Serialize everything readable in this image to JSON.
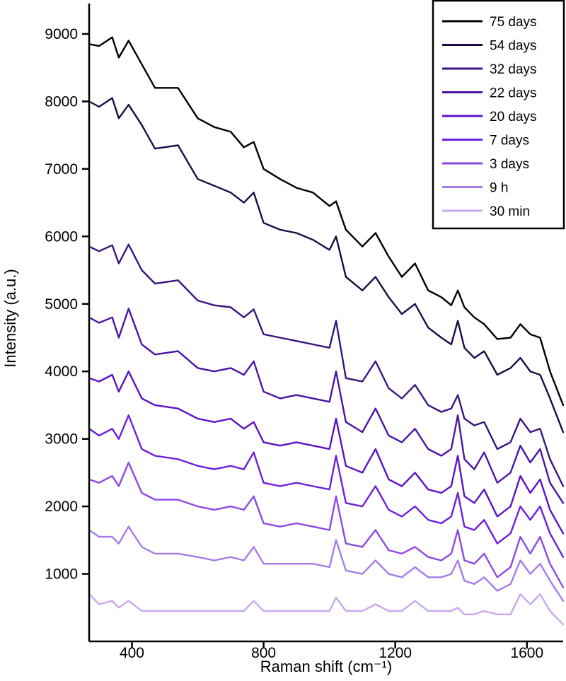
{
  "chart_data": {
    "type": "line",
    "title": "",
    "xlabel": "Raman shift (cm⁻¹)",
    "ylabel": "Intensity (a.u.)",
    "xlim": [
      270,
      1710
    ],
    "ylim": [
      0,
      9450
    ],
    "x_ticks": [
      400,
      800,
      1200,
      1600
    ],
    "x_tick_labels": [
      "400",
      "800",
      "1200",
      "1600"
    ],
    "y_ticks": [
      1000,
      2000,
      3000,
      4000,
      5000,
      6000,
      7000,
      8000,
      9000
    ],
    "y_tick_labels": [
      "1000",
      "2000",
      "3000",
      "4000",
      "5000",
      "6000",
      "7000",
      "8000",
      "9000"
    ],
    "legend_position": "top-right",
    "x": [
      270,
      300,
      340,
      360,
      390,
      430,
      470,
      540,
      600,
      650,
      700,
      740,
      770,
      800,
      850,
      900,
      950,
      1000,
      1020,
      1050,
      1100,
      1140,
      1180,
      1220,
      1260,
      1300,
      1340,
      1370,
      1390,
      1410,
      1440,
      1470,
      1510,
      1550,
      1580,
      1610,
      1640,
      1670,
      1710
    ],
    "series": [
      {
        "name": "75 days",
        "color": "#000000",
        "values": [
          8850,
          8820,
          8950,
          8650,
          8900,
          8550,
          8200,
          8200,
          7750,
          7620,
          7550,
          7320,
          7400,
          7000,
          6850,
          6720,
          6650,
          6450,
          6520,
          6100,
          5850,
          6050,
          5700,
          5400,
          5600,
          5200,
          5100,
          4980,
          5200,
          4950,
          4800,
          4700,
          4480,
          4500,
          4700,
          4550,
          4500,
          4000,
          3500
        ]
      },
      {
        "name": "54 days",
        "color": "#1f0a44",
        "values": [
          8000,
          7920,
          8050,
          7750,
          7950,
          7650,
          7300,
          7350,
          6850,
          6750,
          6650,
          6500,
          6650,
          6200,
          6100,
          6050,
          5950,
          5800,
          6000,
          5400,
          5200,
          5400,
          5100,
          4850,
          5000,
          4650,
          4500,
          4400,
          4750,
          4350,
          4200,
          4300,
          3950,
          4050,
          4200,
          4000,
          3950,
          3600,
          3100
        ]
      },
      {
        "name": "32 days",
        "color": "#3b1480",
        "values": [
          5850,
          5780,
          5870,
          5600,
          5880,
          5500,
          5300,
          5350,
          5050,
          4980,
          4950,
          4800,
          4920,
          4550,
          4500,
          4450,
          4400,
          4350,
          4750,
          3900,
          3850,
          4150,
          3750,
          3600,
          3800,
          3500,
          3400,
          3450,
          3650,
          3300,
          3200,
          3250,
          2850,
          2950,
          3300,
          3100,
          3150,
          2700,
          2300
        ]
      },
      {
        "name": "22 days",
        "color": "#4a14a6",
        "values": [
          4800,
          4720,
          4800,
          4500,
          4930,
          4400,
          4250,
          4300,
          4050,
          4000,
          4050,
          3950,
          4150,
          3700,
          3600,
          3650,
          3600,
          3550,
          4000,
          3250,
          3100,
          3450,
          3050,
          2950,
          3150,
          2850,
          2750,
          2850,
          3350,
          2700,
          2550,
          2800,
          2350,
          2500,
          2900,
          2650,
          2850,
          2350,
          2050
        ]
      },
      {
        "name": "20 days",
        "color": "#5a12c8",
        "values": [
          3900,
          3850,
          3950,
          3700,
          4000,
          3600,
          3500,
          3450,
          3300,
          3250,
          3300,
          3150,
          3250,
          2950,
          2900,
          2950,
          2900,
          2850,
          3300,
          2600,
          2500,
          2850,
          2400,
          2300,
          2500,
          2250,
          2200,
          2300,
          2750,
          2150,
          2050,
          2250,
          1850,
          2000,
          2450,
          2200,
          2400,
          1950,
          1600
        ]
      },
      {
        "name": "7 days",
        "color": "#6d1ee0",
        "values": [
          3150,
          3050,
          3150,
          3000,
          3350,
          2850,
          2750,
          2700,
          2600,
          2550,
          2600,
          2550,
          2800,
          2350,
          2300,
          2350,
          2300,
          2250,
          2750,
          2050,
          2000,
          2300,
          1950,
          1850,
          2000,
          1800,
          1750,
          1850,
          2200,
          1700,
          1650,
          1800,
          1450,
          1600,
          2000,
          1800,
          2000,
          1600,
          1250
        ]
      },
      {
        "name": "3 days",
        "color": "#8d48e4",
        "values": [
          2400,
          2350,
          2450,
          2300,
          2650,
          2200,
          2100,
          2100,
          2000,
          1950,
          2000,
          1950,
          2150,
          1750,
          1700,
          1750,
          1700,
          1650,
          2150,
          1450,
          1400,
          1650,
          1350,
          1300,
          1400,
          1250,
          1200,
          1300,
          1650,
          1200,
          1150,
          1300,
          950,
          1100,
          1550,
          1300,
          1550,
          1150,
          800
        ]
      },
      {
        "name": "9 h",
        "color": "#a67be8",
        "values": [
          1650,
          1550,
          1550,
          1450,
          1700,
          1400,
          1300,
          1300,
          1250,
          1200,
          1250,
          1200,
          1400,
          1150,
          1150,
          1150,
          1150,
          1100,
          1500,
          1050,
          1000,
          1200,
          1000,
          950,
          1100,
          950,
          950,
          1000,
          1200,
          900,
          850,
          950,
          750,
          850,
          1200,
          1000,
          1150,
          900,
          600
        ]
      },
      {
        "name": "30 min",
        "color": "#c9a8ee",
        "values": [
          700,
          550,
          600,
          500,
          600,
          450,
          450,
          450,
          450,
          450,
          450,
          450,
          600,
          450,
          450,
          450,
          450,
          450,
          650,
          450,
          450,
          550,
          450,
          450,
          600,
          450,
          450,
          450,
          500,
          400,
          400,
          450,
          400,
          400,
          700,
          550,
          700,
          450,
          250
        ]
      }
    ]
  }
}
